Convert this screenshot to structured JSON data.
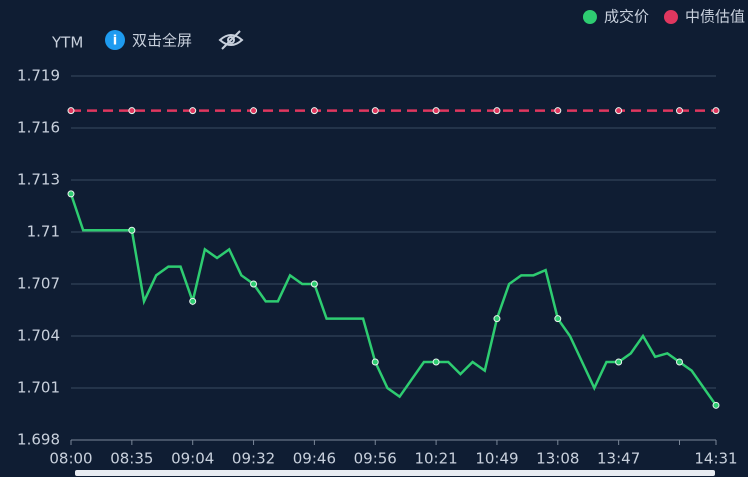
{
  "chart_data": {
    "type": "line",
    "y_axis_label": "YTM",
    "fullscreen_hint": "双击全屏",
    "categories": [
      "08:00",
      null,
      null,
      null,
      null,
      "08:35",
      null,
      null,
      null,
      null,
      "09:04",
      null,
      null,
      null,
      null,
      "09:32",
      null,
      null,
      null,
      null,
      "09:46",
      null,
      null,
      null,
      null,
      "09:56",
      null,
      null,
      null,
      null,
      "10:21",
      null,
      null,
      null,
      null,
      "10:49",
      null,
      null,
      null,
      null,
      "13:08",
      null,
      null,
      null,
      null,
      "13:47",
      null,
      null,
      null,
      null,
      null,
      null,
      null,
      "14:31"
    ],
    "series": [
      {
        "name": "成交价",
        "color": "#2ecc71",
        "values": [
          1.7122,
          1.7101,
          1.7101,
          1.7101,
          1.7101,
          1.7101,
          1.706,
          1.7075,
          1.708,
          1.708,
          1.706,
          1.709,
          1.7085,
          1.709,
          1.7075,
          1.707,
          1.706,
          1.706,
          1.7075,
          1.707,
          1.707,
          1.705,
          1.705,
          1.705,
          1.705,
          1.7025,
          1.701,
          1.7005,
          1.7015,
          1.7025,
          1.7025,
          1.7025,
          1.7018,
          1.7025,
          1.702,
          1.705,
          1.707,
          1.7075,
          1.7075,
          1.7078,
          1.705,
          1.704,
          1.7025,
          1.701,
          1.7025,
          1.7025,
          1.703,
          1.704,
          1.7028,
          1.703,
          1.7025,
          1.702,
          1.701,
          1.7
        ]
      },
      {
        "name": "中债估值",
        "color": "#e0375f",
        "dashed": true,
        "values": [
          1.717,
          1.717,
          1.717,
          1.717,
          1.717,
          1.717,
          1.717,
          1.717,
          1.717,
          1.717,
          1.717,
          1.717,
          1.717,
          1.717,
          1.717,
          1.717,
          1.717,
          1.717,
          1.717,
          1.717,
          1.717,
          1.717,
          1.717,
          1.717,
          1.717,
          1.717,
          1.717,
          1.717,
          1.717,
          1.717,
          1.717,
          1.717,
          1.717,
          1.717,
          1.717,
          1.717,
          1.717,
          1.717,
          1.717,
          1.717,
          1.717,
          1.717,
          1.717,
          1.717,
          1.717,
          1.717,
          1.717,
          1.717,
          1.717,
          1.717,
          1.717,
          1.717,
          1.717,
          1.717
        ]
      }
    ],
    "ylim": [
      1.698,
      1.719
    ],
    "yticks": [
      1.698,
      1.701,
      1.704,
      1.707,
      1.71,
      1.713,
      1.716,
      1.719
    ],
    "grid": true,
    "legend": "top-right"
  }
}
